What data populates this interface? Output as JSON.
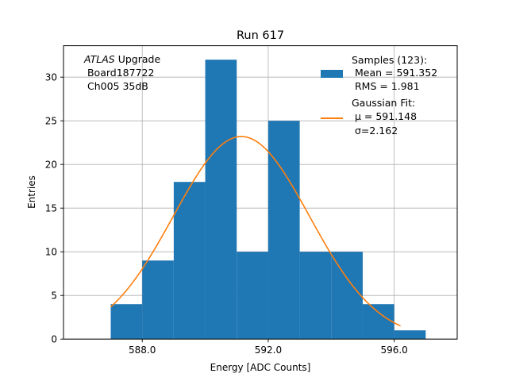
{
  "chart_data": {
    "type": "bar",
    "title": "Run 617",
    "xlabel": "Energy [ADC Counts]",
    "ylabel": "Entries",
    "xlim": [
      585.5,
      598.0
    ],
    "ylim": [
      0,
      33.6
    ],
    "grid": true,
    "legend_position": "top-right",
    "xticks": [
      588.0,
      592.0,
      596.0
    ],
    "xtick_labels": [
      "588.0",
      "592.0",
      "596.0"
    ],
    "yticks": [
      0,
      5,
      10,
      15,
      20,
      25,
      30
    ],
    "yticks_labels": [
      "0",
      "5",
      "10",
      "15",
      "20",
      "25",
      "30"
    ],
    "bin_edges": [
      587,
      588,
      589,
      590,
      591,
      592,
      593,
      594,
      595,
      596,
      597
    ],
    "counts": [
      4,
      9,
      18,
      32,
      10,
      25,
      10,
      10,
      4,
      1
    ],
    "bar_color": "#1f77b4",
    "fit": {
      "type": "gaussian",
      "amplitude": 23.2,
      "mu": 591.148,
      "sigma": 2.162,
      "x_range": [
        587.0,
        596.2
      ],
      "color": "#ff7f0e"
    },
    "annotation": {
      "line1_italic": "ATLAS",
      "line1_rest": " Upgrade",
      "line2": " Board187722",
      "line3": " Ch005 35dB"
    },
    "legend": {
      "hist_lines": [
        "Samples (123):",
        " Mean = 591.352",
        " RMS = 1.981"
      ],
      "fit_lines": [
        "Gaussian Fit:",
        " μ = 591.148",
        " σ=2.162"
      ]
    }
  }
}
